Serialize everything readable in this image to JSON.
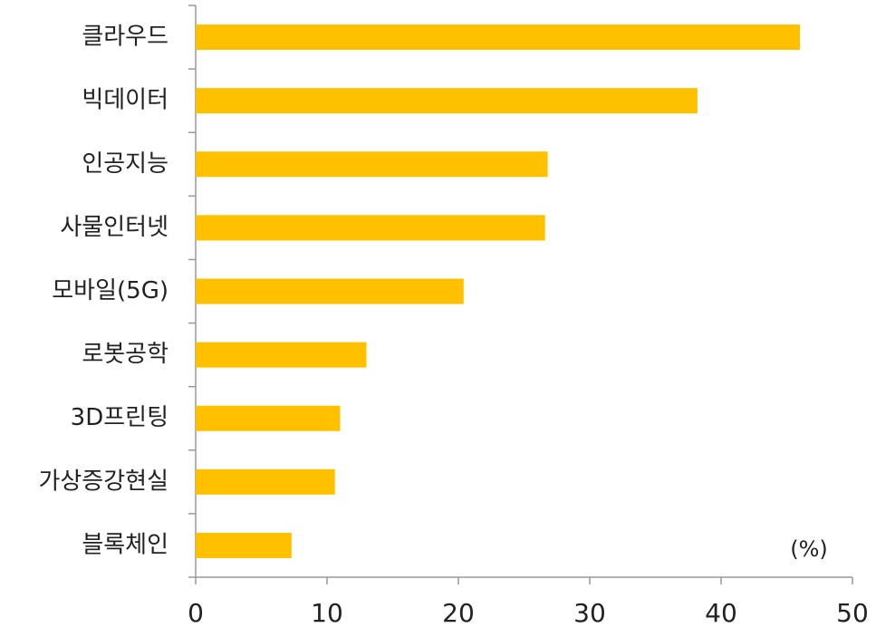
{
  "chart_data": {
    "type": "bar",
    "orientation": "horizontal",
    "categories": [
      "클라우드",
      "빅데이터",
      "인공지능",
      "사물인터넷",
      "모바일(5G)",
      "로봇공학",
      "3D프린팅",
      "가상증강현실",
      "블록체인"
    ],
    "values": [
      46,
      38.2,
      26.8,
      26.6,
      20.4,
      13,
      11,
      10.6,
      7.3
    ],
    "color": "#FFC000",
    "xlim": [
      0,
      50
    ],
    "xticks": [
      0,
      10,
      20,
      30,
      40,
      50
    ],
    "annotation": "(%)",
    "grid": false
  }
}
